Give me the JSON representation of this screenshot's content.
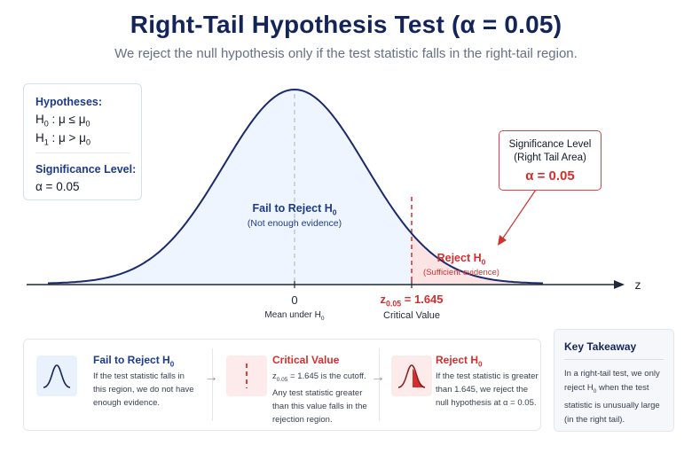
{
  "title": "Right-Tail Hypothesis Test (α = 0.05)",
  "subtitle": "We reject the null hypothesis only if the test statistic falls in the right-tail region.",
  "hypotheses": {
    "heading": "Hypotheses:",
    "h0_symbol": "H",
    "h0_sub": "0",
    "h0_rest": " : μ ≤ μ",
    "h0_rest_sub": "0",
    "h1_symbol": "H",
    "h1_sub": "1",
    "h1_rest": " : μ > μ",
    "h1_rest_sub": "0",
    "sig_heading": "Significance Level:",
    "alpha": "α = 0.05"
  },
  "curve": {
    "fail_title": "Fail to Reject H",
    "fail_title_sub": "0",
    "fail_note": "(Not enough evidence)",
    "reject_title": "Reject H",
    "reject_title_sub": "0",
    "reject_note": "(Sufficient evidence)",
    "axis_label": "z",
    "zero_label": "0",
    "mean_label": "Mean under H",
    "mean_label_sub": "0",
    "critical_z": "z",
    "critical_z_sub": "0.05",
    "critical_value": " = 1.645",
    "critical_caption": "Critical Value"
  },
  "significance_box": {
    "line1": "Significance Level",
    "line2": "(Right Tail Area)",
    "value": "α = 0.05"
  },
  "sections": {
    "fail": {
      "title": "Fail to Reject H",
      "title_sub": "0",
      "line1": "If the test statistic falls in",
      "line2": "this region, we do not have",
      "line3": "enough evidence."
    },
    "critical": {
      "title": "Critical Value",
      "line1_a": "z",
      "line1_sub": "0.05",
      "line1_b": " = 1.645 is the cutoff.",
      "line2": "Any test statistic greater",
      "line3": "than this value falls in the",
      "line4": "rejection region."
    },
    "reject": {
      "title": "Reject H",
      "title_sub": "0",
      "line1": "If the test statistic is greater",
      "line2": "than 1.645, we reject the",
      "line3": "null hypothesis at α = 0.05."
    }
  },
  "key_takeaway": {
    "title": "Key Takeaway",
    "line1": "In a right-tail test, we only",
    "line2_a": "reject H",
    "line2_sub": "0",
    "line2_b": " when the test",
    "line3": "statistic is unusually large",
    "line4": "(in the right tail)."
  },
  "colors": {
    "navy": "#13245a",
    "curve": "#1a2a6c",
    "fail_fill": "#eef5fe",
    "reject_fill": "#fde4e4",
    "red": "#d32f2f"
  }
}
